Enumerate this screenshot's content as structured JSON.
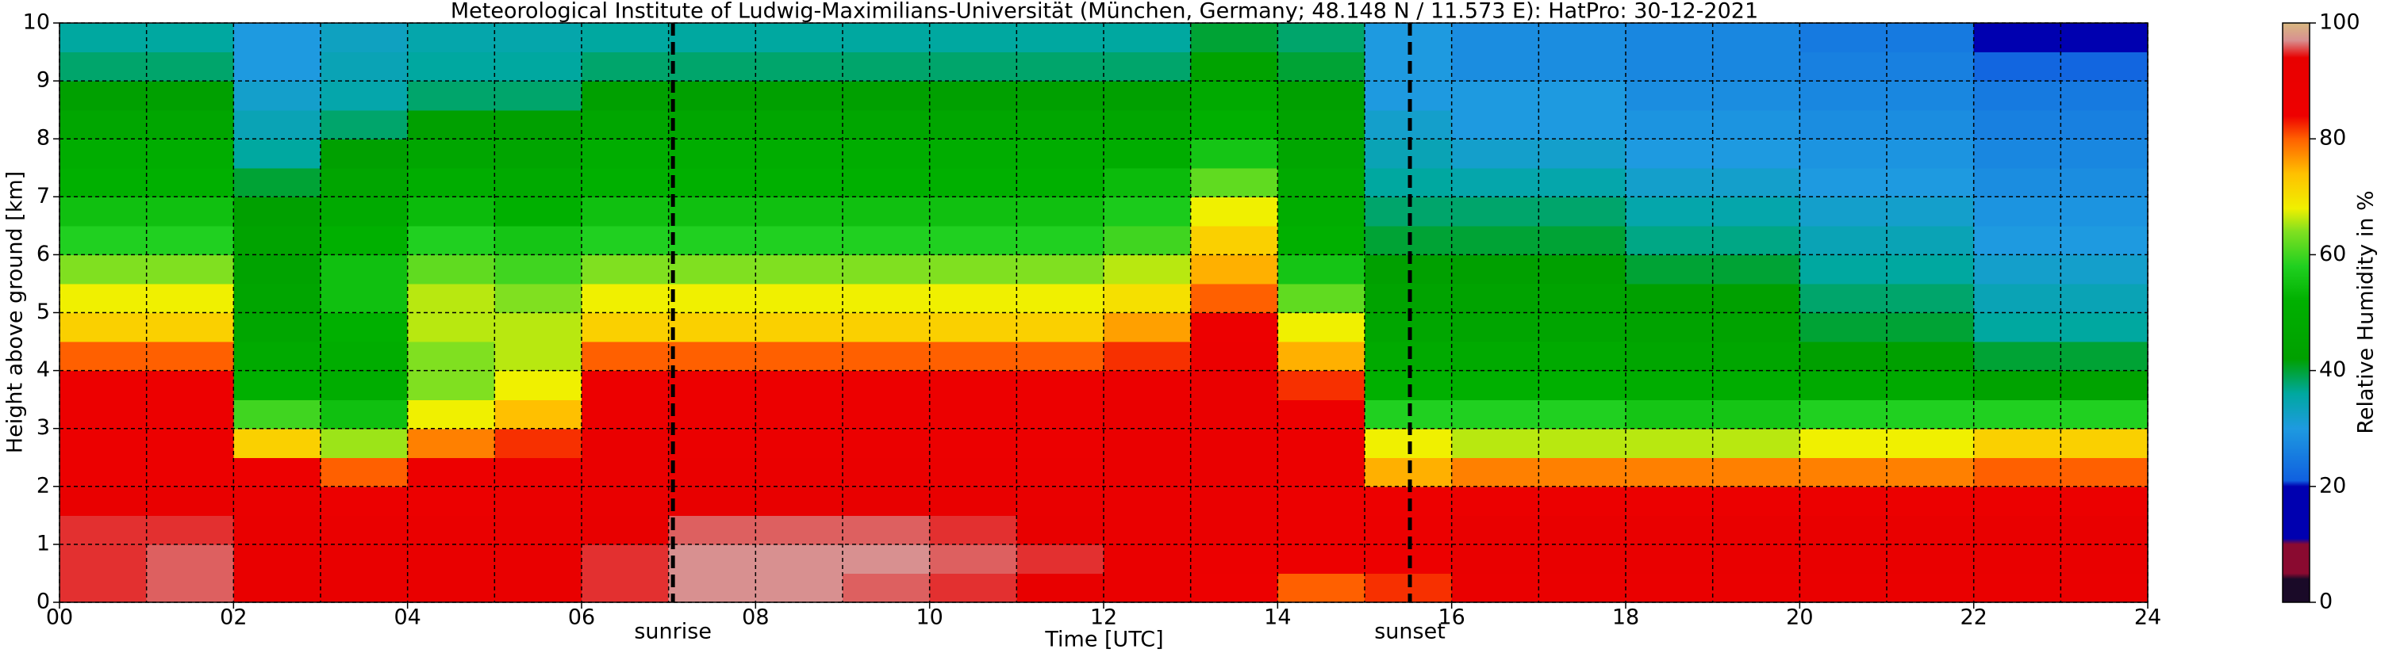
{
  "chart_data": {
    "type": "heatmap",
    "title": "Meteorological Institute of Ludwig-Maximilians-Universität (München, Germany; 48.148 N / 11.573 E):    HatPro: 30-12-2021",
    "xlabel": "Time [UTC]",
    "ylabel": "Height above ground [km]",
    "colorbar_label": "Relative Humidity in %",
    "xlim": [
      0,
      24
    ],
    "ylim": [
      0,
      10
    ],
    "xticks": [
      {
        "value": 0,
        "label": "00"
      },
      {
        "value": 2,
        "label": "02"
      },
      {
        "value": 4,
        "label": "04"
      },
      {
        "value": 6,
        "label": "06"
      },
      {
        "value": 8,
        "label": "08"
      },
      {
        "value": 10,
        "label": "10"
      },
      {
        "value": 12,
        "label": "12"
      },
      {
        "value": 14,
        "label": "14"
      },
      {
        "value": 16,
        "label": "16"
      },
      {
        "value": 18,
        "label": "18"
      },
      {
        "value": 20,
        "label": "20"
      },
      {
        "value": 22,
        "label": "22"
      },
      {
        "value": 24,
        "label": "24"
      }
    ],
    "xminor": [
      1,
      3,
      5,
      7,
      9,
      11,
      13,
      15,
      17,
      19,
      21,
      23
    ],
    "yticks": [
      0,
      1,
      2,
      3,
      4,
      5,
      6,
      7,
      8,
      9,
      10
    ],
    "grid": true,
    "clim": [
      0,
      100
    ],
    "cticks": [
      0,
      20,
      40,
      60,
      80,
      100
    ],
    "colormap": [
      {
        "value": 0,
        "color": "#1a0a28"
      },
      {
        "value": 4,
        "color": "#1a0a28"
      },
      {
        "value": 5,
        "color": "#8a0a30"
      },
      {
        "value": 10,
        "color": "#8a0a30"
      },
      {
        "value": 11,
        "color": "#0000b0"
      },
      {
        "value": 20,
        "color": "#0000b0"
      },
      {
        "value": 21,
        "color": "#1060e0"
      },
      {
        "value": 30,
        "color": "#1e9ae0"
      },
      {
        "value": 36,
        "color": "#00a8a0"
      },
      {
        "value": 42,
        "color": "#00a000"
      },
      {
        "value": 52,
        "color": "#00b000"
      },
      {
        "value": 58,
        "color": "#20d020"
      },
      {
        "value": 64,
        "color": "#80e020"
      },
      {
        "value": 68,
        "color": "#f0f000"
      },
      {
        "value": 74,
        "color": "#ffc000"
      },
      {
        "value": 80,
        "color": "#ff6000"
      },
      {
        "value": 84,
        "color": "#ee0000"
      },
      {
        "value": 94,
        "color": "#e80000"
      },
      {
        "value": 97,
        "color": "#d89090"
      },
      {
        "value": 100,
        "color": "#d8b880"
      }
    ],
    "x": [
      0,
      1,
      2,
      3,
      4,
      5,
      6,
      7,
      8,
      9,
      10,
      11,
      12,
      13,
      14,
      15,
      16,
      17,
      18,
      19,
      20,
      21,
      22,
      23
    ],
    "y": [
      0,
      0.5,
      1,
      1.5,
      2,
      2.5,
      3,
      3.5,
      4,
      4.5,
      5,
      5.5,
      6,
      6.5,
      7,
      7.5,
      8,
      8.5,
      9,
      9.5
    ],
    "values": [
      [
        95,
        95,
        95,
        93,
        88,
        88,
        88,
        86,
        80,
        72,
        68,
        64,
        58,
        55,
        52,
        50,
        46,
        42,
        38,
        36
      ],
      [
        96,
        96,
        95,
        93,
        88,
        88,
        88,
        86,
        80,
        72,
        68,
        64,
        58,
        55,
        52,
        50,
        46,
        42,
        38,
        36
      ],
      [
        92,
        92,
        92,
        90,
        85,
        72,
        60,
        52,
        48,
        46,
        45,
        44,
        44,
        42,
        40,
        36,
        34,
        32,
        30,
        30
      ],
      [
        92,
        92,
        90,
        88,
        80,
        65,
        55,
        50,
        50,
        52,
        55,
        55,
        52,
        48,
        45,
        42,
        38,
        35,
        34,
        33
      ],
      [
        92,
        92,
        90,
        88,
        85,
        78,
        68,
        64,
        64,
        66,
        66,
        62,
        58,
        54,
        50,
        46,
        42,
        38,
        36,
        35
      ],
      [
        93,
        93,
        92,
        90,
        88,
        82,
        74,
        68,
        66,
        66,
        64,
        60,
        56,
        52,
        48,
        45,
        42,
        38,
        36,
        35
      ],
      [
        95,
        95,
        94,
        92,
        90,
        90,
        88,
        86,
        80,
        72,
        68,
        64,
        58,
        55,
        52,
        50,
        46,
        42,
        38,
        36
      ],
      [
        97,
        97,
        96,
        94,
        90,
        89,
        88,
        86,
        80,
        72,
        68,
        64,
        58,
        55,
        52,
        50,
        46,
        42,
        38,
        36
      ],
      [
        97,
        97,
        96,
        94,
        90,
        89,
        88,
        86,
        80,
        72,
        68,
        64,
        58,
        55,
        52,
        50,
        46,
        42,
        38,
        36
      ],
      [
        96,
        97,
        96,
        94,
        90,
        89,
        88,
        86,
        80,
        72,
        68,
        64,
        58,
        55,
        52,
        50,
        46,
        42,
        38,
        36
      ],
      [
        95,
        96,
        95,
        93,
        89,
        88,
        88,
        86,
        80,
        72,
        68,
        64,
        58,
        55,
        52,
        50,
        46,
        42,
        38,
        36
      ],
      [
        94,
        95,
        94,
        92,
        89,
        88,
        88,
        86,
        80,
        72,
        68,
        64,
        58,
        55,
        52,
        50,
        46,
        42,
        38,
        36
      ],
      [
        90,
        90,
        90,
        90,
        90,
        90,
        90,
        88,
        82,
        76,
        70,
        66,
        60,
        57,
        54,
        50,
        46,
        42,
        38,
        36
      ],
      [
        85,
        88,
        90,
        90,
        90,
        90,
        90,
        90,
        88,
        85,
        80,
        75,
        72,
        68,
        62,
        56,
        52,
        48,
        44,
        40
      ],
      [
        80,
        85,
        88,
        88,
        88,
        88,
        86,
        82,
        75,
        68,
        62,
        56,
        52,
        50,
        48,
        46,
        44,
        42,
        40,
        38
      ],
      [
        82,
        86,
        88,
        85,
        75,
        68,
        58,
        52,
        48,
        46,
        44,
        42,
        40,
        38,
        36,
        34,
        32,
        30,
        30,
        30
      ],
      [
        90,
        92,
        92,
        88,
        78,
        66,
        58,
        52,
        48,
        45,
        44,
        42,
        40,
        38,
        35,
        32,
        30,
        30,
        28,
        28
      ],
      [
        90,
        92,
        92,
        88,
        78,
        66,
        58,
        52,
        48,
        45,
        44,
        42,
        40,
        38,
        35,
        32,
        30,
        30,
        28,
        28
      ],
      [
        90,
        92,
        92,
        88,
        78,
        66,
        56,
        50,
        46,
        44,
        42,
        40,
        37,
        35,
        32,
        30,
        29,
        28,
        27,
        27
      ],
      [
        90,
        92,
        92,
        88,
        78,
        66,
        56,
        50,
        46,
        44,
        42,
        40,
        37,
        35,
        32,
        30,
        29,
        28,
        27,
        27
      ],
      [
        90,
        92,
        92,
        88,
        78,
        68,
        58,
        48,
        42,
        40,
        38,
        36,
        34,
        32,
        30,
        29,
        28,
        27,
        26,
        25
      ],
      [
        90,
        92,
        92,
        88,
        78,
        68,
        58,
        48,
        42,
        40,
        38,
        36,
        34,
        32,
        30,
        29,
        28,
        27,
        26,
        25
      ],
      [
        90,
        92,
        92,
        88,
        80,
        72,
        58,
        44,
        40,
        36,
        34,
        32,
        30,
        29,
        28,
        27,
        26,
        25,
        22,
        20
      ],
      [
        90,
        92,
        92,
        88,
        80,
        72,
        58,
        44,
        40,
        36,
        34,
        32,
        30,
        29,
        28,
        27,
        26,
        25,
        22,
        20
      ]
    ],
    "annotations": [
      {
        "text": "sunrise",
        "x": 7.05
      },
      {
        "text": "sunset",
        "x": 15.52
      }
    ]
  }
}
